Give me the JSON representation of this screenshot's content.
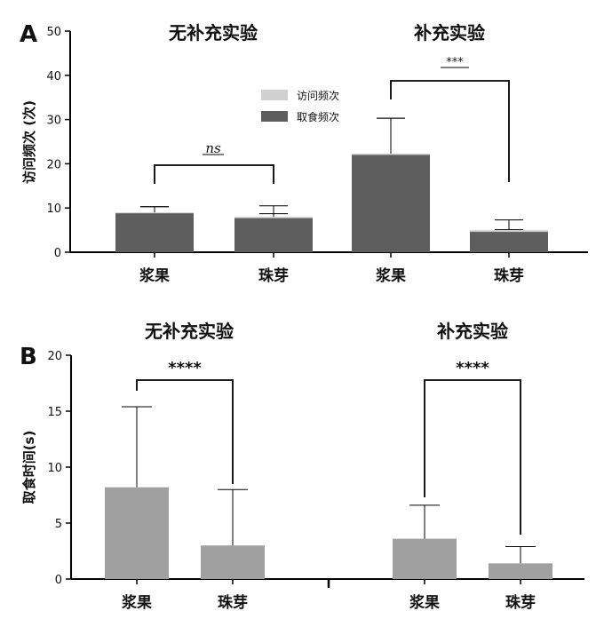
{
  "chart_data": [
    {
      "type": "bar",
      "panel": "A",
      "group_titles": [
        "无补充实验",
        "补充实验"
      ],
      "categories": [
        "浆果",
        "珠芽",
        "浆果",
        "珠芽"
      ],
      "ylabel": "访问频次 (次)",
      "ylim": [
        0,
        50
      ],
      "yticks": [
        0,
        10,
        20,
        30,
        40,
        50
      ],
      "legend": {
        "position": "top-center",
        "entries": [
          "访问频次",
          "取食频次"
        ]
      },
      "colors": {
        "访问频次": "#d0d0d0",
        "取食频次": "#5e5e5e"
      },
      "series": [
        {
          "name": "访问频次",
          "values": [
            9,
            8,
            22.3,
            5
          ],
          "error": [
            1.3,
            2.5,
            8,
            2.3
          ]
        },
        {
          "name": "取食频次",
          "values": [
            8.8,
            7.7,
            22,
            4.6
          ],
          "error": [
            1.5,
            1,
            8.3,
            0.5
          ]
        }
      ],
      "significance": [
        {
          "group": 0,
          "label": "ns"
        },
        {
          "group": 1,
          "label": "***"
        }
      ]
    },
    {
      "type": "bar",
      "panel": "B",
      "group_titles": [
        "无补充实验",
        "补充实验"
      ],
      "categories": [
        "浆果",
        "珠芽",
        "浆果",
        "珠芽"
      ],
      "ylabel": "取食时间(s)",
      "ylim": [
        0,
        20
      ],
      "yticks": [
        0,
        5,
        10,
        15,
        20
      ],
      "colors": {
        "bar": "#a0a0a0"
      },
      "values": [
        8.2,
        3.0,
        3.6,
        1.4
      ],
      "error": [
        7.2,
        5.0,
        3.0,
        1.5
      ],
      "significance": [
        {
          "group": 0,
          "label": "****"
        },
        {
          "group": 1,
          "label": "****"
        }
      ]
    }
  ]
}
